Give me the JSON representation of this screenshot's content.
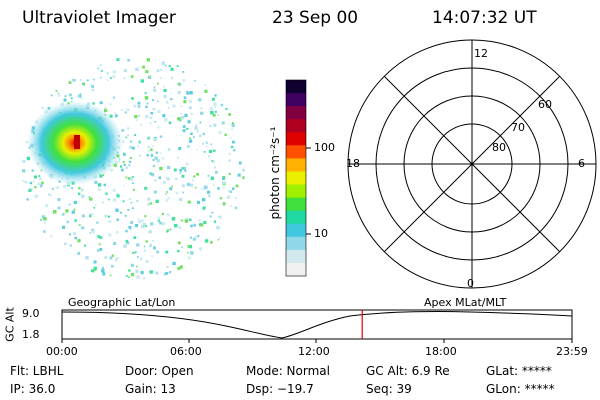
{
  "header": {
    "title": "Ultraviolet Imager",
    "date": "23 Sep 00",
    "time": "14:07:32 UT"
  },
  "colorbar": {
    "label": "photon cm⁻²s⁻¹",
    "ticks": [
      "100",
      "10"
    ],
    "colors": [
      "#f0f0f0",
      "#d0e8ee",
      "#90d8e8",
      "#40c8e0",
      "#20d8a0",
      "#40e040",
      "#a0f000",
      "#e8f000",
      "#ffb000",
      "#ff5000",
      "#e00000",
      "#b00020",
      "#800040",
      "#400060",
      "#100030"
    ]
  },
  "polar_plot": {
    "labels": {
      "top": "12",
      "bottom": "0",
      "left": "18",
      "right": "6",
      "ring60": "60",
      "ring70": "70",
      "ring80": "80"
    }
  },
  "timeline": {
    "axis_title": "GC Alt",
    "y_max": "9.0",
    "y_min": "1.8",
    "left_caption": "Geographic Lat/Lon",
    "right_caption": "Apex MLat/MLT",
    "ticks": [
      "00:00",
      "06:00",
      "12:00",
      "18:00",
      "23:59"
    ],
    "current_time_hours": 14.125
  },
  "status": {
    "flt": "Flt: LBHL",
    "ip": "IP: 36.0",
    "door": "Door: Open",
    "gain": "Gain: 13",
    "mode": "Mode: Normal",
    "dsp": "Dsp:  −19.7",
    "gcalt": "GC Alt: 6.9 Re",
    "seq": "Seq: 39",
    "glat": "GLat: *****",
    "glon": "GLon: *****"
  }
}
